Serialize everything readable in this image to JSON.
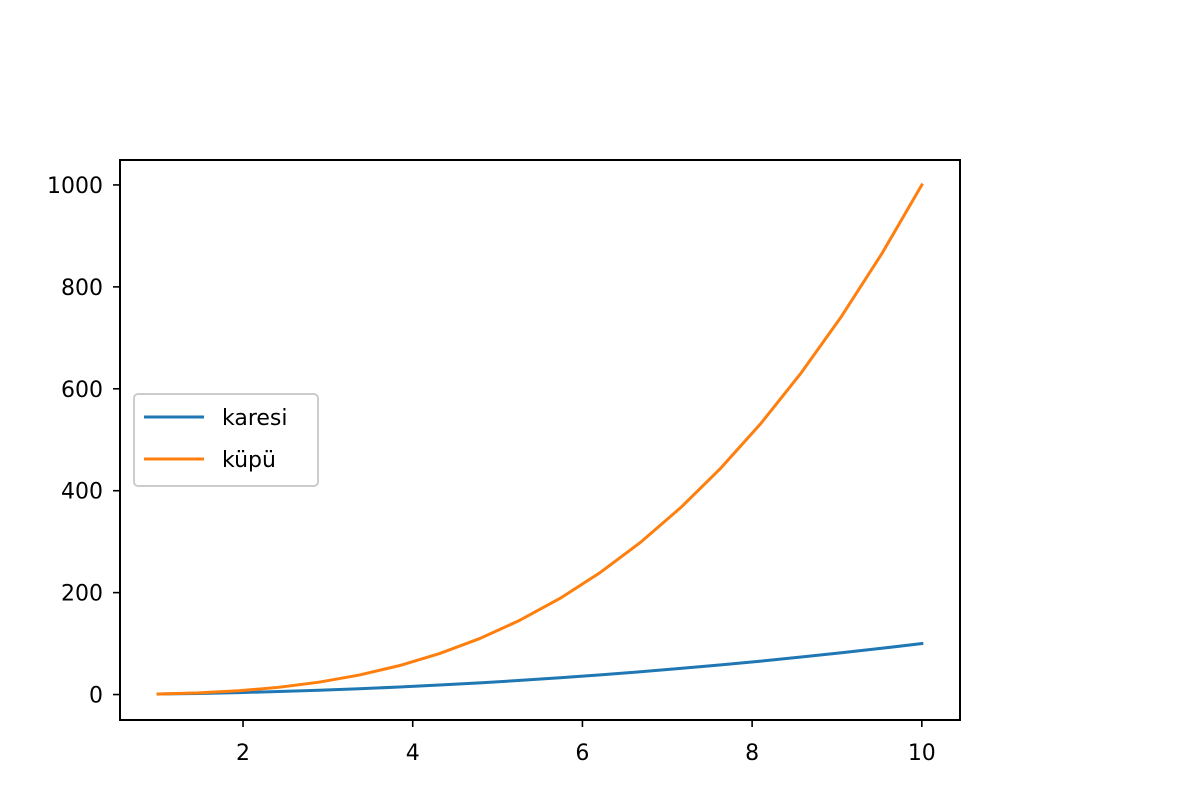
{
  "chart_data": {
    "type": "line",
    "title": "",
    "xlabel": "",
    "ylabel": "",
    "xlim": [
      0.55,
      10.45
    ],
    "ylim": [
      -49.95,
      1048.95
    ],
    "x_ticks": [
      2,
      4,
      6,
      8,
      10
    ],
    "y_ticks": [
      0,
      200,
      400,
      600,
      800,
      1000
    ],
    "grid": false,
    "legend_position": "center-left",
    "x": [
      1.0,
      1.4737,
      1.9474,
      2.4211,
      2.8947,
      3.3684,
      3.8421,
      4.3158,
      4.7895,
      5.2632,
      5.7368,
      6.2105,
      6.6842,
      7.1579,
      7.6316,
      8.1053,
      8.5789,
      9.0526,
      9.5263,
      10.0
    ],
    "series": [
      {
        "name": "karesi",
        "color": "#1f77b4",
        "values": [
          1.0,
          2.17,
          3.79,
          5.86,
          8.38,
          11.35,
          14.76,
          18.63,
          22.94,
          27.7,
          32.91,
          38.57,
          44.68,
          51.24,
          58.24,
          65.69,
          73.6,
          81.95,
          90.75,
          100.0
        ]
      },
      {
        "name": "küpü",
        "color": "#ff7f0e",
        "values": [
          1.0,
          3.2,
          7.39,
          14.19,
          24.26,
          38.22,
          56.72,
          80.39,
          109.87,
          145.81,
          188.81,
          239.55,
          298.64,
          366.73,
          444.47,
          532.48,
          631.39,
          741.86,
          864.5,
          1000.0
        ]
      }
    ]
  }
}
